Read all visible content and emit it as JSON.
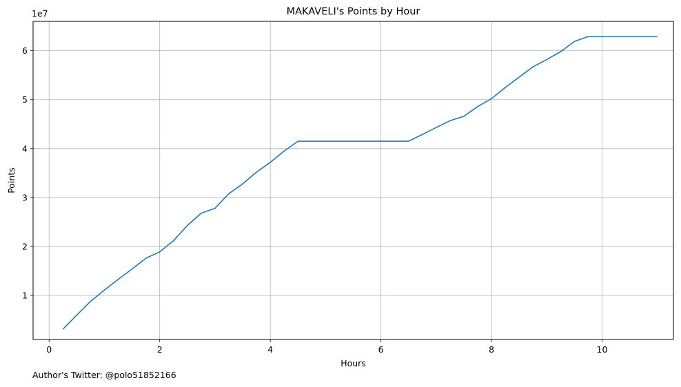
{
  "chart_data": {
    "type": "line",
    "title": "MAKAVELI's Points by Hour",
    "xlabel": "Hours",
    "ylabel": "Points",
    "y_offset_label": "1e7",
    "xlim": [
      -0.29,
      11.29
    ],
    "ylim": [
      0.1,
      6.6
    ],
    "xticks": [
      0,
      2,
      4,
      6,
      8,
      10
    ],
    "xtick_labels": [
      "0",
      "2",
      "4",
      "6",
      "8",
      "10"
    ],
    "yticks": [
      1,
      2,
      3,
      4,
      5,
      6
    ],
    "ytick_labels": [
      "1",
      "2",
      "3",
      "4",
      "5",
      "6"
    ],
    "grid": true,
    "color": "#1f77b4",
    "series": [
      {
        "name": "Points",
        "x": [
          0.25,
          0.5,
          0.75,
          1.0,
          1.25,
          1.5,
          1.75,
          2.0,
          2.25,
          2.5,
          2.75,
          3.0,
          3.25,
          3.5,
          3.75,
          4.0,
          4.25,
          4.5,
          4.75,
          5.0,
          5.25,
          5.5,
          5.75,
          6.0,
          6.25,
          6.5,
          6.75,
          7.0,
          7.25,
          7.5,
          7.75,
          8.0,
          8.25,
          8.5,
          8.75,
          9.0,
          9.25,
          9.5,
          9.75,
          10.0,
          10.25,
          10.5,
          10.75,
          11.0
        ],
        "values": [
          0.31,
          0.6,
          0.88,
          1.11,
          1.33,
          1.54,
          1.76,
          1.89,
          2.12,
          2.43,
          2.68,
          2.78,
          3.08,
          3.28,
          3.52,
          3.72,
          3.95,
          4.15,
          4.15,
          4.15,
          4.15,
          4.15,
          4.15,
          4.15,
          4.15,
          4.15,
          4.29,
          4.43,
          4.57,
          4.66,
          4.86,
          5.02,
          5.25,
          5.46,
          5.67,
          5.82,
          5.98,
          6.19,
          6.29,
          6.29,
          6.29,
          6.29,
          6.29,
          6.29
        ]
      }
    ]
  },
  "footnote": "Author's Twitter: @polo51852166"
}
